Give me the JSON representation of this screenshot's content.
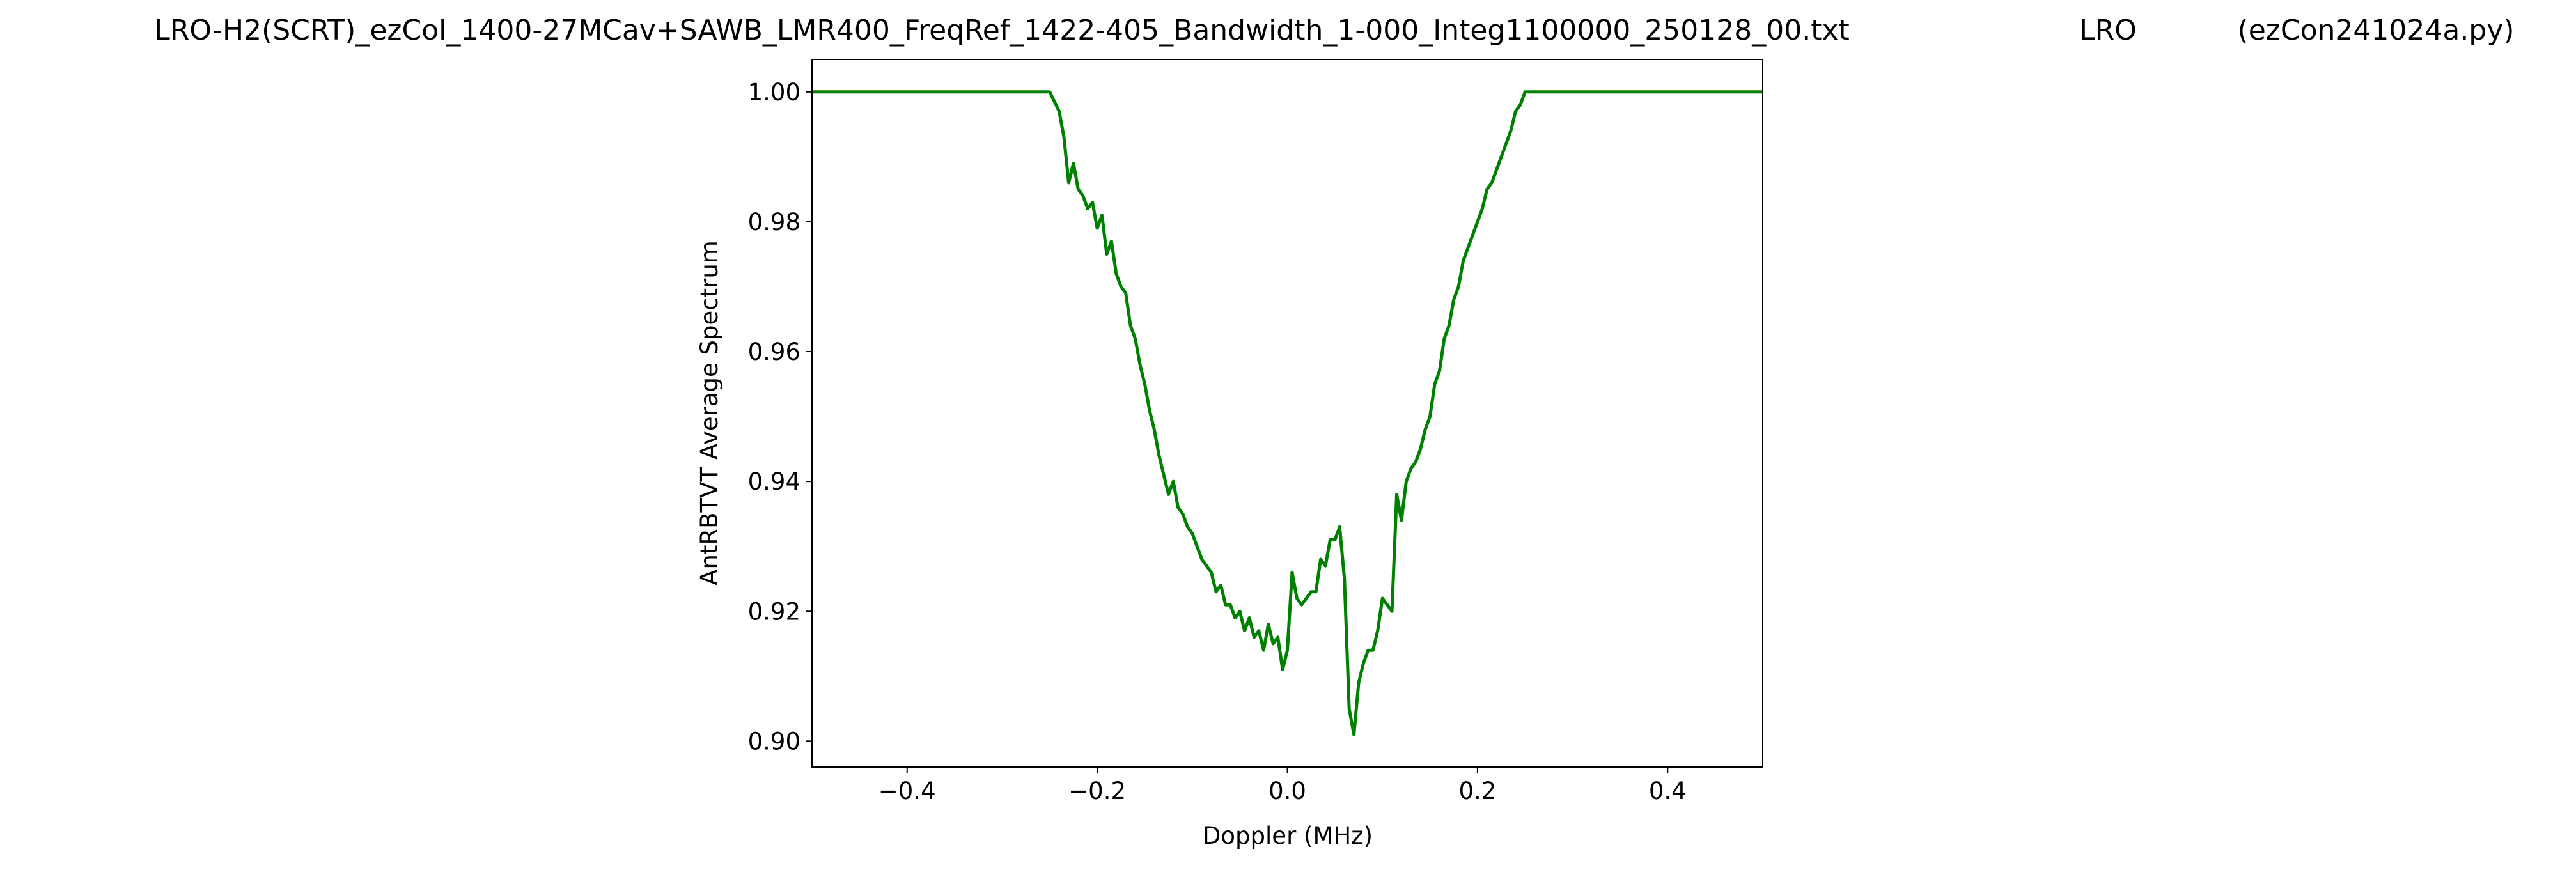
{
  "chart_data": {
    "type": "line",
    "title_parts": [
      "LRO-H2(SCRT)_ezCol_1400-27MCav+SAWB_LMR400_FreqRef_1422-405_Bandwidth_1-000_Integ1100000_250128_00.txt",
      "LRO",
      "(ezCon241024a.py)"
    ],
    "x_label": "Doppler (MHz)",
    "y_label": "AntRBTVT Average Spectrum",
    "x": [
      -0.5,
      -0.25,
      -0.24,
      -0.235,
      -0.23,
      -0.225,
      -0.22,
      -0.215,
      -0.21,
      -0.205,
      -0.2,
      -0.195,
      -0.19,
      -0.185,
      -0.18,
      -0.175,
      -0.17,
      -0.165,
      -0.16,
      -0.155,
      -0.15,
      -0.145,
      -0.14,
      -0.135,
      -0.13,
      -0.125,
      -0.12,
      -0.115,
      -0.11,
      -0.105,
      -0.1,
      -0.095,
      -0.09,
      -0.085,
      -0.08,
      -0.075,
      -0.07,
      -0.065,
      -0.06,
      -0.055,
      -0.05,
      -0.045,
      -0.04,
      -0.035,
      -0.03,
      -0.025,
      -0.02,
      -0.015,
      -0.01,
      -0.005,
      0,
      0.005,
      0.01,
      0.015,
      0.02,
      0.025,
      0.03,
      0.035,
      0.04,
      0.045,
      0.05,
      0.055,
      0.06,
      0.065,
      0.07,
      0.075,
      0.08,
      0.085,
      0.09,
      0.095,
      0.1,
      0.105,
      0.11,
      0.115,
      0.12,
      0.125,
      0.13,
      0.135,
      0.14,
      0.145,
      0.15,
      0.155,
      0.16,
      0.165,
      0.17,
      0.175,
      0.18,
      0.185,
      0.19,
      0.195,
      0.2,
      0.205,
      0.21,
      0.215,
      0.22,
      0.225,
      0.23,
      0.235,
      0.24,
      0.245,
      0.25,
      0.5
    ],
    "series": [
      {
        "name": "AntRBTVT Average Spectrum",
        "color": "#008000",
        "values": [
          1.0,
          1.0,
          0.997,
          0.993,
          0.986,
          0.989,
          0.985,
          0.984,
          0.982,
          0.983,
          0.979,
          0.981,
          0.975,
          0.977,
          0.972,
          0.97,
          0.969,
          0.964,
          0.962,
          0.958,
          0.955,
          0.951,
          0.948,
          0.944,
          0.941,
          0.938,
          0.94,
          0.936,
          0.935,
          0.933,
          0.932,
          0.93,
          0.928,
          0.927,
          0.926,
          0.923,
          0.924,
          0.921,
          0.921,
          0.919,
          0.92,
          0.917,
          0.919,
          0.916,
          0.917,
          0.914,
          0.918,
          0.915,
          0.916,
          0.911,
          0.914,
          0.926,
          0.922,
          0.921,
          0.922,
          0.923,
          0.923,
          0.928,
          0.927,
          0.931,
          0.931,
          0.933,
          0.925,
          0.905,
          0.901,
          0.909,
          0.912,
          0.914,
          0.914,
          0.917,
          0.922,
          0.921,
          0.92,
          0.938,
          0.934,
          0.94,
          0.942,
          0.943,
          0.945,
          0.948,
          0.95,
          0.955,
          0.957,
          0.962,
          0.964,
          0.968,
          0.97,
          0.974,
          0.976,
          0.978,
          0.98,
          0.982,
          0.985,
          0.986,
          0.988,
          0.99,
          0.992,
          0.994,
          0.997,
          0.998,
          1.0,
          1.0
        ]
      }
    ],
    "xlim": [
      -0.5,
      0.5
    ],
    "ylim": [
      0.896,
      1.005
    ],
    "xticks": [
      {
        "value": -0.4,
        "label": "−0.4"
      },
      {
        "value": -0.2,
        "label": "−0.2"
      },
      {
        "value": 0,
        "label": "0.0"
      },
      0.2,
      0.4
    ],
    "yticks": [
      {
        "value": 0.9,
        "label": "0.90"
      },
      0.92,
      0.94,
      0.96,
      0.98,
      {
        "value": 1,
        "label": "1.00"
      }
    ]
  }
}
